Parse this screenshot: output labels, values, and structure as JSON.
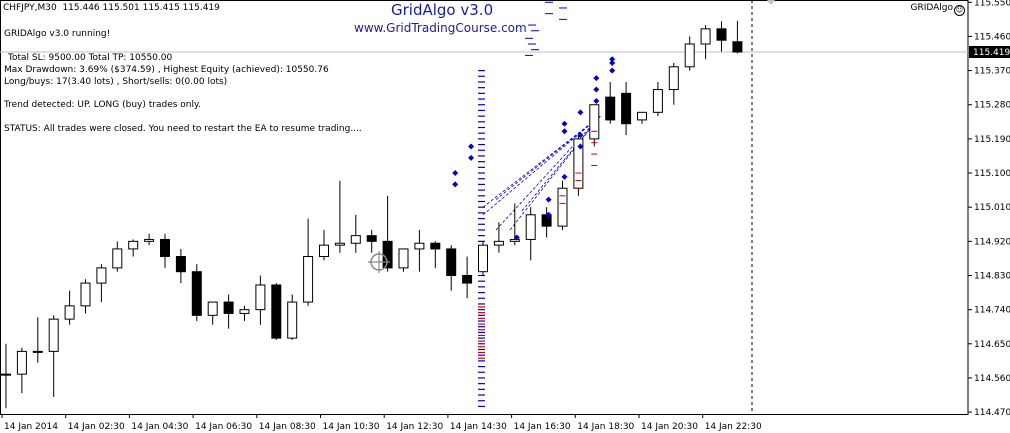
{
  "header": {
    "symbol_timeframe": "CHFJPY,M30",
    "ohlc": "115.446 115.501 115.415 115.419"
  },
  "branding": {
    "title": "GridAlgo v3.0",
    "url": "www.GridTradingCourse.com"
  },
  "indicator": {
    "label": "GRIDAlgo",
    "icon": "smiley-icon"
  },
  "ea_info": {
    "running": "GRIDAlgo v3.0 running!",
    "totals": "Total SL: 9500.00 Total TP: 10550.00",
    "drawdown": "Max Drawdown: 3.69% ($374.59) , Highest Equity (achieved): 10550.76",
    "positions": "Long/buys: 17(3.40 lots) , Short/sells: 0(0.00 lots)",
    "trend": "Trend detected: UP. LONG (buy) trades only.",
    "status": "STATUS: All trades were closed. You need to restart the EA to resume trading...."
  },
  "price_scale": {
    "ticks": [
      "115.550",
      "115.460",
      "115.370",
      "115.280",
      "115.190",
      "115.100",
      "115.010",
      "114.920",
      "114.830",
      "114.740",
      "114.650",
      "114.560",
      "114.470"
    ],
    "current_price": "115.419",
    "current_price_value": 115.419
  },
  "time_scale": {
    "labels": [
      "14 Jan 2014",
      "14 Jan 02:30",
      "14 Jan 04:30",
      "14 Jan 06:30",
      "14 Jan 08:30",
      "14 Jan 10:30",
      "14 Jan 12:30",
      "14 Jan 14:30",
      "14 Jan 16:30",
      "14 Jan 18:30",
      "14 Jan 20:30",
      "14 Jan 22:30"
    ]
  },
  "colors": {
    "candle_border": "#000000",
    "bull_body": "#ffffff",
    "bear_body": "#000000",
    "grid_buy": "#0000cc",
    "grid_sell": "#cc0000",
    "current_price_line": "#c0c0c0"
  },
  "chart_data": {
    "type": "candlestick",
    "title": "CHFJPY,M30",
    "xlabel": "",
    "ylabel": "",
    "ylim": [
      114.465,
      115.556
    ],
    "candles": [
      {
        "o": 114.57,
        "h": 114.65,
        "l": 114.48,
        "c": 114.57
      },
      {
        "o": 114.57,
        "h": 114.64,
        "l": 114.52,
        "c": 114.63
      },
      {
        "o": 114.63,
        "h": 114.72,
        "l": 114.6,
        "c": 114.63
      },
      {
        "o": 114.63,
        "h": 114.725,
        "l": 114.51,
        "c": 114.715
      },
      {
        "o": 114.715,
        "h": 114.79,
        "l": 114.7,
        "c": 114.75
      },
      {
        "o": 114.75,
        "h": 114.82,
        "l": 114.73,
        "c": 114.81
      },
      {
        "o": 114.81,
        "h": 114.86,
        "l": 114.76,
        "c": 114.85
      },
      {
        "o": 114.85,
        "h": 114.92,
        "l": 114.84,
        "c": 114.9
      },
      {
        "o": 114.9,
        "h": 114.925,
        "l": 114.88,
        "c": 114.92
      },
      {
        "o": 114.92,
        "h": 114.94,
        "l": 114.91,
        "c": 114.925
      },
      {
        "o": 114.925,
        "h": 114.94,
        "l": 114.85,
        "c": 114.88
      },
      {
        "o": 114.88,
        "h": 114.9,
        "l": 114.81,
        "c": 114.84
      },
      {
        "o": 114.84,
        "h": 114.86,
        "l": 114.71,
        "c": 114.725
      },
      {
        "o": 114.725,
        "h": 114.76,
        "l": 114.7,
        "c": 114.76
      },
      {
        "o": 114.76,
        "h": 114.78,
        "l": 114.69,
        "c": 114.73
      },
      {
        "o": 114.73,
        "h": 114.75,
        "l": 114.71,
        "c": 114.74
      },
      {
        "o": 114.74,
        "h": 114.83,
        "l": 114.7,
        "c": 114.805
      },
      {
        "o": 114.805,
        "h": 114.81,
        "l": 114.66,
        "c": 114.665
      },
      {
        "o": 114.665,
        "h": 114.78,
        "l": 114.66,
        "c": 114.76
      },
      {
        "o": 114.76,
        "h": 114.98,
        "l": 114.75,
        "c": 114.88
      },
      {
        "o": 114.88,
        "h": 114.95,
        "l": 114.87,
        "c": 114.91
      },
      {
        "o": 114.91,
        "h": 115.08,
        "l": 114.89,
        "c": 114.915
      },
      {
        "o": 114.915,
        "h": 114.99,
        "l": 114.89,
        "c": 114.935
      },
      {
        "o": 114.935,
        "h": 114.95,
        "l": 114.89,
        "c": 114.92
      },
      {
        "o": 114.92,
        "h": 115.04,
        "l": 114.84,
        "c": 114.85
      },
      {
        "o": 114.85,
        "h": 114.89,
        "l": 114.84,
        "c": 114.9
      },
      {
        "o": 114.9,
        "h": 114.95,
        "l": 114.84,
        "c": 114.915
      },
      {
        "o": 114.915,
        "h": 114.92,
        "l": 114.85,
        "c": 114.9
      },
      {
        "o": 114.9,
        "h": 114.91,
        "l": 114.79,
        "c": 114.83
      },
      {
        "o": 114.83,
        "h": 114.88,
        "l": 114.77,
        "c": 114.81
      },
      {
        "o": 114.84,
        "h": 114.92,
        "l": 114.83,
        "c": 114.91
      },
      {
        "o": 114.91,
        "h": 114.97,
        "l": 114.89,
        "c": 114.92
      },
      {
        "o": 114.92,
        "h": 115.02,
        "l": 114.91,
        "c": 114.925
      },
      {
        "o": 114.925,
        "h": 115.01,
        "l": 114.87,
        "c": 114.99
      },
      {
        "o": 114.99,
        "h": 115.01,
        "l": 114.93,
        "c": 114.96
      },
      {
        "o": 114.96,
        "h": 115.08,
        "l": 114.95,
        "c": 115.06
      },
      {
        "o": 115.06,
        "h": 115.2,
        "l": 115.04,
        "c": 115.19
      },
      {
        "o": 115.19,
        "h": 115.28,
        "l": 115.17,
        "c": 115.28
      },
      {
        "o": 115.3,
        "h": 115.34,
        "l": 115.23,
        "c": 115.24
      },
      {
        "o": 115.31,
        "h": 115.34,
        "l": 115.2,
        "c": 115.23
      },
      {
        "o": 115.24,
        "h": 115.26,
        "l": 115.23,
        "c": 115.26
      },
      {
        "o": 115.26,
        "h": 115.34,
        "l": 115.25,
        "c": 115.32
      },
      {
        "o": 115.32,
        "h": 115.39,
        "l": 115.28,
        "c": 115.38
      },
      {
        "o": 115.38,
        "h": 115.46,
        "l": 115.37,
        "c": 115.44
      },
      {
        "o": 115.44,
        "h": 115.49,
        "l": 115.4,
        "c": 115.48
      },
      {
        "o": 115.48,
        "h": 115.5,
        "l": 115.42,
        "c": 115.45
      },
      {
        "o": 115.446,
        "h": 115.501,
        "l": 115.415,
        "c": 115.419
      }
    ],
    "buy_grid_levels": [
      115.37,
      115.355,
      115.34,
      115.325,
      115.31,
      115.295,
      115.28,
      115.265,
      115.25,
      115.235,
      115.22,
      115.205,
      115.19,
      115.175,
      115.16,
      115.145,
      115.13,
      115.115,
      115.1,
      115.085,
      115.07,
      115.055,
      115.04,
      115.025,
      115.01,
      114.995,
      114.98,
      114.965,
      114.95,
      114.935,
      114.92,
      114.905,
      114.89,
      114.875,
      114.86,
      114.845,
      114.83,
      114.815,
      114.8,
      114.785,
      114.77,
      114.755,
      114.74,
      114.725,
      114.71,
      114.695,
      114.68,
      114.665,
      114.65,
      114.635,
      114.62,
      114.605,
      114.59,
      114.575,
      114.56,
      114.545,
      114.53,
      114.515,
      114.5,
      114.485
    ],
    "sell_grid_levels": [
      114.755,
      114.74,
      114.725,
      114.71,
      114.695,
      114.68,
      114.665,
      114.65,
      114.635,
      114.62
    ],
    "buy_arrows": [
      {
        "i": 32,
        "p": 114.93
      },
      {
        "i": 34,
        "p": 114.99
      },
      {
        "i": 34,
        "p": 115.03
      },
      {
        "i": 35,
        "p": 115.09
      },
      {
        "i": 36,
        "p": 115.17
      },
      {
        "i": 36,
        "p": 115.2
      },
      {
        "i": 35,
        "p": 115.21
      },
      {
        "i": 35,
        "p": 115.23
      },
      {
        "i": 36,
        "p": 115.26
      },
      {
        "i": 37,
        "p": 115.29
      },
      {
        "i": 37,
        "p": 115.32
      },
      {
        "i": 37,
        "p": 115.35
      },
      {
        "i": 38,
        "p": 115.37
      },
      {
        "i": 38,
        "p": 115.39
      },
      {
        "i": 38,
        "p": 115.4
      }
    ],
    "sell_arrows": [
      {
        "i": 28,
        "p": 115.07
      },
      {
        "i": 28,
        "p": 115.1
      },
      {
        "i": 29,
        "p": 115.14
      },
      {
        "i": 29,
        "p": 115.17
      }
    ],
    "top_levels": [
      115.55,
      115.535,
      115.52,
      115.505,
      115.49,
      115.475,
      115.455,
      115.44,
      115.425,
      115.41
    ]
  }
}
